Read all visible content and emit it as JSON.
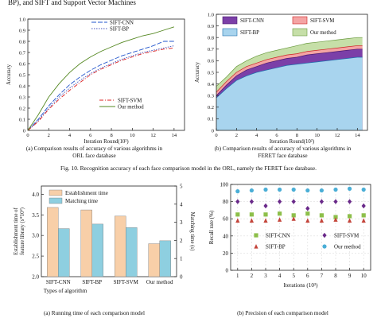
{
  "header_text": "BP), and SIFT and Support Vector Machines",
  "figure_caption": "Fig. 10.  Recognition accuracy of each face comparison model in the ORL, namely the FERET face database.",
  "chart_data": [
    {
      "type": "line",
      "subcaption_line1": "(a) Comparison results of accuracy of various algorithms in",
      "subcaption_line2": "ORL face database",
      "ylabel": "Accuracy",
      "xlabel": "Iteration Round(10²)",
      "xlim": [
        0,
        15
      ],
      "ylim": [
        0,
        1.0
      ],
      "xticks": [
        "0",
        "2",
        "4",
        "6",
        "8",
        "10",
        "12",
        "14"
      ],
      "yticks": [
        "0",
        "0.1",
        "0.2",
        "0.3",
        "0.4",
        "0.5",
        "0.6",
        "0.7",
        "0.8",
        "0.9",
        "1.0"
      ],
      "legend_top": [
        "SIFT-CNN",
        "SIFT-BP"
      ],
      "legend_bottom": [
        "SIFT-SVM",
        "Our method"
      ],
      "series": [
        {
          "name": "SIFT-CNN",
          "color": "#2255cc",
          "dash": "6,2",
          "x": [
            0,
            0.5,
            1,
            2,
            3,
            4,
            5,
            6,
            7,
            8,
            9,
            10,
            11,
            12,
            13,
            14
          ],
          "y": [
            0,
            0.05,
            0.1,
            0.22,
            0.32,
            0.41,
            0.48,
            0.54,
            0.59,
            0.63,
            0.67,
            0.7,
            0.73,
            0.76,
            0.8,
            0.8
          ]
        },
        {
          "name": "SIFT-BP",
          "color": "#4455bb",
          "dash": "1.5,1.5",
          "x": [
            0,
            0.5,
            1,
            2,
            3,
            4,
            5,
            6,
            7,
            8,
            9,
            10,
            11,
            12,
            13,
            14
          ],
          "y": [
            0,
            0.04,
            0.09,
            0.2,
            0.3,
            0.38,
            0.45,
            0.51,
            0.56,
            0.6,
            0.64,
            0.67,
            0.7,
            0.72,
            0.74,
            0.76
          ]
        },
        {
          "name": "SIFT-SVM",
          "color": "#dd2222",
          "dash": "5,2,1,2",
          "x": [
            0,
            0.5,
            1,
            2,
            3,
            4,
            5,
            6,
            7,
            8,
            9,
            10,
            11,
            12,
            13,
            14
          ],
          "y": [
            0,
            0.04,
            0.08,
            0.19,
            0.28,
            0.36,
            0.43,
            0.5,
            0.55,
            0.59,
            0.63,
            0.66,
            0.69,
            0.71,
            0.73,
            0.74
          ]
        },
        {
          "name": "Our method",
          "color": "#558822",
          "dash": "",
          "x": [
            0,
            0.5,
            1,
            2,
            3,
            4,
            5,
            6,
            7,
            8,
            9,
            10,
            11,
            12,
            13,
            14
          ],
          "y": [
            0,
            0.07,
            0.14,
            0.3,
            0.42,
            0.52,
            0.6,
            0.66,
            0.71,
            0.75,
            0.79,
            0.82,
            0.85,
            0.87,
            0.9,
            0.93
          ]
        }
      ]
    },
    {
      "type": "area",
      "subcaption_line1": "(b) Comparison results of accuracy of various algorithms in",
      "subcaption_line2": "FERET face database",
      "ylabel": "Accuracy",
      "xlabel": "Iteration Round(10²)",
      "xlim": [
        0,
        15
      ],
      "ylim": [
        0,
        1.0
      ],
      "xticks": [
        "0",
        "2",
        "4",
        "6",
        "8",
        "10",
        "12",
        "14"
      ],
      "yticks": [
        "0",
        "0.1",
        "0.2",
        "0.3",
        "0.4",
        "0.5",
        "0.6",
        "0.7",
        "0.8",
        "0.9",
        "1.0"
      ],
      "legend": [
        "SIFT-CNN",
        "SIFT-SVM",
        "SIFT-BP",
        "Our method"
      ],
      "series": [
        {
          "name": "Our method",
          "color": "#c6dfa8",
          "stroke": "#6a9a40",
          "x": [
            0,
            1,
            2,
            3,
            4,
            5,
            6,
            7,
            8,
            9,
            10,
            11,
            12,
            13,
            14,
            14.5
          ],
          "y": [
            0.38,
            0.46,
            0.55,
            0.6,
            0.64,
            0.67,
            0.69,
            0.71,
            0.73,
            0.75,
            0.76,
            0.77,
            0.78,
            0.79,
            0.8,
            0.8
          ]
        },
        {
          "name": "SIFT-SVM",
          "color": "#f4a4a4",
          "stroke": "#cc2222",
          "x": [
            0,
            1,
            2,
            3,
            4,
            5,
            6,
            7,
            8,
            9,
            10,
            11,
            12,
            13,
            14,
            14.5
          ],
          "y": [
            0.33,
            0.42,
            0.5,
            0.55,
            0.58,
            0.61,
            0.63,
            0.65,
            0.66,
            0.68,
            0.69,
            0.7,
            0.71,
            0.72,
            0.73,
            0.73
          ]
        },
        {
          "name": "SIFT-CNN",
          "color": "#7b3fa8",
          "stroke": "#4a1a70",
          "x": [
            0,
            1,
            2,
            3,
            4,
            5,
            6,
            7,
            8,
            9,
            10,
            11,
            12,
            13,
            14,
            14.5
          ],
          "y": [
            0.3,
            0.39,
            0.47,
            0.52,
            0.55,
            0.58,
            0.6,
            0.62,
            0.63,
            0.65,
            0.66,
            0.67,
            0.68,
            0.69,
            0.7,
            0.7
          ]
        },
        {
          "name": "SIFT-BP",
          "color": "#a8d4ee",
          "stroke": "#1f6fae",
          "x": [
            0,
            1,
            2,
            3,
            4,
            5,
            6,
            7,
            8,
            9,
            10,
            11,
            12,
            13,
            14,
            14.5
          ],
          "y": [
            0.28,
            0.36,
            0.43,
            0.47,
            0.5,
            0.52,
            0.54,
            0.56,
            0.57,
            0.58,
            0.59,
            0.6,
            0.61,
            0.62,
            0.63,
            0.63
          ]
        }
      ]
    },
    {
      "type": "bar",
      "subcaption": "(a) Running time of each comparison model",
      "ylabel_left": "Establishment time of feature library (s*10²)",
      "ylabel_right": "Matching time (s)",
      "xlabel": "Types of algorithm",
      "categories": [
        "SIFT-CNN",
        "SIFT-BP",
        "SIFT-SVM",
        "Our method"
      ],
      "ylim_left": [
        2.0,
        4.2
      ],
      "yticks_left": [
        "2.0",
        "2.5",
        "3.0",
        "3.5",
        "4.0"
      ],
      "ylim_right": [
        0,
        5
      ],
      "yticks_right": [
        "0",
        "1",
        "2",
        "3",
        "4",
        "5"
      ],
      "series": [
        {
          "name": "Establishment time",
          "color": "#f8cfa8",
          "axis": "left",
          "values": [
            3.68,
            3.62,
            3.47,
            2.8
          ]
        },
        {
          "name": "Matching time",
          "color": "#8ecfe0",
          "axis": "right",
          "values": [
            2.65,
            2.9,
            2.71,
            1.98
          ]
        }
      ]
    },
    {
      "type": "scatter",
      "subcaption": "(b) Precision of each comparison model",
      "ylabel": "Recall rate (%)",
      "xlabel": "Iterations (10²)",
      "xlim": [
        0.5,
        10.5
      ],
      "ylim": [
        0,
        100
      ],
      "xticks": [
        "1",
        "2",
        "3",
        "4",
        "5",
        "6",
        "7",
        "8",
        "9",
        "10"
      ],
      "yticks": [
        "0",
        "20",
        "40",
        "60",
        "80",
        "100"
      ],
      "series": [
        {
          "name": "SIFT-CNN",
          "color": "#8dbf4a",
          "marker": "square",
          "x": [
            1,
            2,
            3,
            4,
            5,
            6,
            7,
            8,
            9,
            10
          ],
          "y": [
            65,
            65,
            65,
            66,
            64,
            66,
            64,
            62,
            63,
            64
          ]
        },
        {
          "name": "SIFT-SVM",
          "color": "#6a2a8a",
          "marker": "diamond",
          "x": [
            1,
            2,
            3,
            4,
            5,
            6,
            7,
            8,
            9,
            10
          ],
          "y": [
            80,
            80,
            75,
            80,
            80,
            72,
            80,
            80,
            80,
            75
          ]
        },
        {
          "name": "SIFT-BP",
          "color": "#c4443a",
          "marker": "triangle",
          "x": [
            1,
            2,
            3,
            4,
            5,
            6,
            7,
            8,
            9,
            10
          ],
          "y": [
            58,
            58,
            58,
            59,
            60,
            58,
            58,
            59,
            58,
            58
          ]
        },
        {
          "name": "Our method",
          "color": "#4aaed6",
          "marker": "circle",
          "x": [
            1,
            2,
            3,
            4,
            5,
            6,
            7,
            8,
            9,
            10
          ],
          "y": [
            92,
            93,
            94,
            94,
            94,
            93,
            93,
            94,
            95,
            94
          ]
        }
      ]
    }
  ]
}
